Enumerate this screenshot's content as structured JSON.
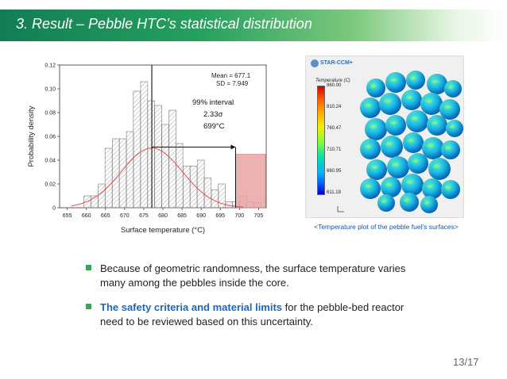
{
  "slide": {
    "title": "3. Result – Pebble HTC’s statistical distribution",
    "page_number": "13/17",
    "colors": {
      "title_bar": "#127d55",
      "accent_text": "#1c66c0",
      "bullet": "#3aa35c"
    }
  },
  "chart_data": {
    "type": "bar",
    "xlabel": "Surface temperature (°C)",
    "ylabel": "Probability density",
    "xlim": [
      653,
      707
    ],
    "ylim": [
      0,
      0.12
    ],
    "x_ticks": [
      "655",
      "660",
      "665",
      "670",
      "675",
      "680",
      "685",
      "690",
      "695",
      "700",
      "705"
    ],
    "y_ticks": [
      "0",
      "0.02",
      "0.04",
      "0.06",
      "0.08",
      "0.10",
      "0.12"
    ],
    "bin_width": 1.85,
    "bins": [
      {
        "x": 655.5,
        "value": 0
      },
      {
        "x": 660.25,
        "value": 0.01
      },
      {
        "x": 662.1,
        "value": 0.01
      },
      {
        "x": 664.0,
        "value": 0.02
      },
      {
        "x": 665.8,
        "value": 0.05
      },
      {
        "x": 667.7,
        "value": 0.058
      },
      {
        "x": 669.5,
        "value": 0.058
      },
      {
        "x": 671.4,
        "value": 0.064
      },
      {
        "x": 673.2,
        "value": 0.098
      },
      {
        "x": 675.1,
        "value": 0.106
      },
      {
        "x": 676.9,
        "value": 0.09
      },
      {
        "x": 678.8,
        "value": 0.086
      },
      {
        "x": 680.6,
        "value": 0.07
      },
      {
        "x": 682.5,
        "value": 0.082
      },
      {
        "x": 684.3,
        "value": 0.054
      },
      {
        "x": 686.2,
        "value": 0.035
      },
      {
        "x": 688.0,
        "value": 0.035
      },
      {
        "x": 689.9,
        "value": 0.04
      },
      {
        "x": 691.7,
        "value": 0.025
      },
      {
        "x": 693.6,
        "value": 0.015
      },
      {
        "x": 695.4,
        "value": 0.02
      },
      {
        "x": 697.3,
        "value": 0.005
      },
      {
        "x": 699.1,
        "value": 0.005
      },
      {
        "x": 701.0,
        "value": 0.01
      },
      {
        "x": 702.8,
        "value": 0.005
      },
      {
        "x": 704.7,
        "value": 0.004
      }
    ],
    "normal_fit": {
      "mean": 677.1,
      "sd": 7.949,
      "color": "#e0504f",
      "x_range": [
        656,
        701
      ]
    },
    "mean_line_x": 677.1,
    "highlight_region": {
      "x_start": 699,
      "x_end": 706.8,
      "value": 0.045,
      "color": "#e9a3a3"
    },
    "interval_arrow": {
      "from_x": 677.1,
      "to_x": 699,
      "y": 0.051
    },
    "annotations": {
      "mean": "Mean = 677.1",
      "sd": "SD = 7.949",
      "interval_line1": "99% interval",
      "interval_line2": "2.33σ",
      "interval_line3": "699°C"
    }
  },
  "visualization": {
    "logo_text": "STAR-CCM+",
    "colorbar_title": "Temperature (C)",
    "colorbar_ticks": [
      "860.00",
      "810.24",
      "760.47",
      "710.71",
      "660.95",
      "611.18"
    ],
    "caption": "<Temperature plot of the pebble fuel’s surfaces>"
  },
  "bullets": [
    {
      "text": "Because of geometric randomness, the surface temperature varies many among the pebbles inside the core."
    },
    {
      "highlight": "The safety criteria and material limits",
      "text": " for the pebble-bed reactor need to be reviewed based on this uncertainty."
    }
  ]
}
